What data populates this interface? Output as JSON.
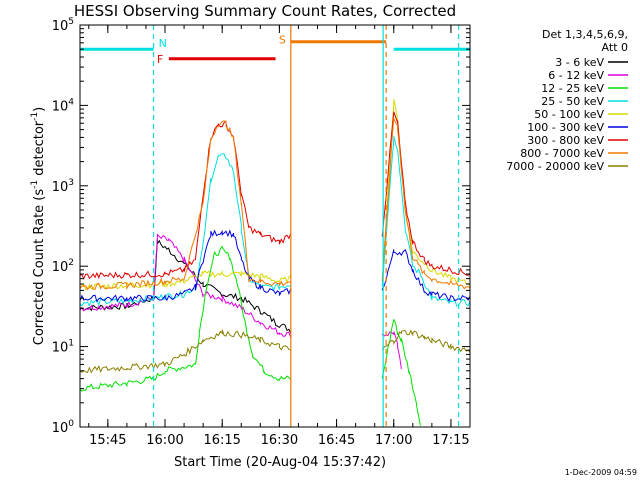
{
  "chart_data": {
    "type": "line",
    "title": "HESSI Observing Summary Count Rates, Corrected",
    "xlabel": "Start Time (20-Aug-04 15:37:42)",
    "ylabel": "Corrected Count Rate (s",
    "ylabel_exp": "-1",
    "ylabel_mid": " detector",
    "ylabel_end": ")",
    "xlim": [
      "15:37:42",
      "17:20:00"
    ],
    "ylim": [
      1,
      100000
    ],
    "yscale": "log",
    "x_ticks": [
      "15:45",
      "16:00",
      "16:15",
      "16:30",
      "16:45",
      "17:00",
      "17:15"
    ],
    "y_ticks": [
      {
        "base": "10",
        "exp": "0",
        "value": 1
      },
      {
        "base": "10",
        "exp": "1",
        "value": 10
      },
      {
        "base": "10",
        "exp": "2",
        "value": 100
      },
      {
        "base": "10",
        "exp": "3",
        "value": 1000
      },
      {
        "base": "10",
        "exp": "4",
        "value": 10000
      },
      {
        "base": "10",
        "exp": "5",
        "value": 100000
      }
    ],
    "legend_position": "right",
    "legend_header": [
      "Det 1,3,4,5,6,9,",
      "Att 0"
    ],
    "footer_date": "1-Dec-2009 04:59",
    "series": [
      {
        "name": "3 - 6 keV",
        "color": "#000000",
        "points": [
          [
            "15:37:42",
            30
          ],
          [
            "15:50",
            32
          ],
          [
            "15:57",
            40
          ],
          [
            "15:58",
            200
          ],
          [
            "16:01",
            160
          ],
          [
            "16:06",
            95
          ],
          [
            "16:10",
            60
          ],
          [
            "16:15",
            45
          ],
          [
            "16:20",
            40
          ],
          [
            "16:25",
            28
          ],
          [
            "16:29",
            20
          ],
          [
            "16:33",
            16
          ]
        ]
      },
      {
        "name": "6 - 12 keV",
        "color": "#e000e0",
        "points": [
          [
            "15:37:42",
            30
          ],
          [
            "15:50",
            33
          ],
          [
            "15:57",
            40
          ],
          [
            "15:58",
            230
          ],
          [
            "16:01",
            210
          ],
          [
            "16:05",
            120
          ],
          [
            "16:10",
            45
          ],
          [
            "16:15",
            40
          ],
          [
            "16:20",
            30
          ],
          [
            "16:25",
            20
          ],
          [
            "16:30",
            15
          ],
          [
            "16:33",
            14
          ],
          [
            "16:57",
            14
          ],
          [
            "17:00",
            15
          ],
          [
            "17:01",
            10
          ],
          [
            "17:02",
            5
          ]
        ]
      },
      {
        "name": "12 - 25 keV",
        "color": "#00e000",
        "points": [
          [
            "15:37:42",
            3
          ],
          [
            "15:50",
            3.5
          ],
          [
            "15:57",
            4
          ],
          [
            "16:00",
            5
          ],
          [
            "16:08",
            6
          ],
          [
            "16:09",
            15
          ],
          [
            "16:11",
            60
          ],
          [
            "16:13",
            140
          ],
          [
            "16:15",
            160
          ],
          [
            "16:17",
            130
          ],
          [
            "16:19",
            60
          ],
          [
            "16:21",
            20
          ],
          [
            "16:23",
            8
          ],
          [
            "16:26",
            5
          ],
          [
            "16:30",
            4
          ],
          [
            "16:33",
            4
          ],
          [
            "16:57",
            4
          ],
          [
            "17:00",
            22
          ],
          [
            "17:01",
            15
          ],
          [
            "17:02",
            12
          ],
          [
            "17:04",
            5
          ],
          [
            "17:06",
            2
          ],
          [
            "17:07",
            1
          ]
        ]
      },
      {
        "name": "25 - 50 keV",
        "color": "#00e0e0",
        "points": [
          [
            "15:37:42",
            35
          ],
          [
            "15:50",
            37
          ],
          [
            "15:57",
            40
          ],
          [
            "16:00",
            42
          ],
          [
            "16:05",
            45
          ],
          [
            "16:08",
            55
          ],
          [
            "16:10",
            180
          ],
          [
            "16:12",
            1200
          ],
          [
            "16:14",
            2300
          ],
          [
            "16:16",
            2300
          ],
          [
            "16:18",
            1500
          ],
          [
            "16:20",
            300
          ],
          [
            "16:22",
            70
          ],
          [
            "16:25",
            55
          ],
          [
            "16:30",
            55
          ],
          [
            "16:33",
            60
          ],
          [
            "16:57",
            60
          ],
          [
            "17:00",
            4000
          ],
          [
            "17:01",
            3000
          ],
          [
            "17:03",
            300
          ],
          [
            "17:05",
            100
          ],
          [
            "17:07",
            80
          ],
          [
            "17:10",
            40
          ],
          [
            "17:15",
            35
          ],
          [
            "17:20",
            35
          ]
        ]
      },
      {
        "name": "50 - 100 keV",
        "color": "#d8d800",
        "points": [
          [
            "15:37:42",
            55
          ],
          [
            "15:50",
            58
          ],
          [
            "16:00",
            60
          ],
          [
            "16:05",
            65
          ],
          [
            "16:10",
            80
          ],
          [
            "16:15",
            80
          ],
          [
            "16:20",
            80
          ],
          [
            "16:25",
            75
          ],
          [
            "16:30",
            65
          ],
          [
            "16:33",
            70
          ],
          [
            "16:57",
            70
          ],
          [
            "17:00",
            11000
          ],
          [
            "17:01",
            7000
          ],
          [
            "17:03",
            500
          ],
          [
            "17:05",
            150
          ],
          [
            "17:10",
            90
          ],
          [
            "17:15",
            70
          ],
          [
            "17:20",
            60
          ]
        ]
      },
      {
        "name": "100 - 300 keV",
        "color": "#0000e0",
        "points": [
          [
            "15:37:42",
            40
          ],
          [
            "15:50",
            40
          ],
          [
            "16:00",
            40
          ],
          [
            "16:05",
            45
          ],
          [
            "16:08",
            55
          ],
          [
            "16:10",
            120
          ],
          [
            "16:12",
            250
          ],
          [
            "16:15",
            270
          ],
          [
            "16:18",
            250
          ],
          [
            "16:20",
            120
          ],
          [
            "16:22",
            70
          ],
          [
            "16:25",
            55
          ],
          [
            "16:30",
            45
          ],
          [
            "16:33",
            50
          ],
          [
            "16:57",
            50
          ],
          [
            "17:00",
            150
          ],
          [
            "17:03",
            150
          ],
          [
            "17:05",
            90
          ],
          [
            "17:08",
            50
          ],
          [
            "17:10",
            45
          ],
          [
            "17:15",
            40
          ],
          [
            "17:20",
            40
          ]
        ]
      },
      {
        "name": "300 - 800 keV",
        "color": "#e00000",
        "points": [
          [
            "15:37:42",
            75
          ],
          [
            "15:50",
            78
          ],
          [
            "16:00",
            80
          ],
          [
            "16:05",
            90
          ],
          [
            "16:08",
            120
          ],
          [
            "16:10",
            800
          ],
          [
            "16:12",
            4000
          ],
          [
            "16:14",
            5800
          ],
          [
            "16:16",
            5800
          ],
          [
            "16:18",
            4000
          ],
          [
            "16:20",
            800
          ],
          [
            "16:22",
            300
          ],
          [
            "16:25",
            250
          ],
          [
            "16:30",
            200
          ],
          [
            "16:33",
            250
          ],
          [
            "16:57",
            250
          ],
          [
            "17:00",
            8000
          ],
          [
            "17:01",
            6000
          ],
          [
            "17:03",
            600
          ],
          [
            "17:05",
            200
          ],
          [
            "17:08",
            120
          ],
          [
            "17:10",
            100
          ],
          [
            "17:15",
            90
          ],
          [
            "17:20",
            80
          ]
        ]
      },
      {
        "name": "800 - 7000 keV",
        "color": "#f07800",
        "points": [
          [
            "15:37:42",
            55
          ],
          [
            "15:50",
            58
          ],
          [
            "16:00",
            65
          ],
          [
            "16:05",
            70
          ],
          [
            "16:10",
            600
          ],
          [
            "16:12",
            3800
          ],
          [
            "16:14",
            6000
          ],
          [
            "16:16",
            6000
          ],
          [
            "16:18",
            3800
          ],
          [
            "16:20",
            600
          ],
          [
            "16:22",
            70
          ],
          [
            "16:25",
            65
          ],
          [
            "16:30",
            60
          ],
          [
            "16:33",
            65
          ],
          [
            "16:57",
            65
          ],
          [
            "17:00",
            7000
          ],
          [
            "17:01",
            5500
          ],
          [
            "17:03",
            500
          ],
          [
            "17:05",
            130
          ],
          [
            "17:08",
            80
          ],
          [
            "17:10",
            70
          ],
          [
            "17:15",
            60
          ],
          [
            "17:20",
            55
          ]
        ]
      },
      {
        "name": "7000 - 20000 keV",
        "color": "#888000",
        "points": [
          [
            "15:37:42",
            5
          ],
          [
            "15:50",
            5.5
          ],
          [
            "16:00",
            6
          ],
          [
            "16:05",
            8
          ],
          [
            "16:10",
            12
          ],
          [
            "16:15",
            15
          ],
          [
            "16:20",
            14
          ],
          [
            "16:25",
            12
          ],
          [
            "16:30",
            10
          ],
          [
            "16:33",
            9
          ],
          [
            "16:57",
            9
          ],
          [
            "17:00",
            12
          ],
          [
            "17:02",
            15
          ],
          [
            "17:05",
            15
          ],
          [
            "17:08",
            13
          ],
          [
            "17:10",
            12
          ],
          [
            "17:15",
            10
          ],
          [
            "17:20",
            9
          ]
        ]
      }
    ],
    "annotations": {
      "N": {
        "label": "N",
        "color": "#00e0e0",
        "segments": [
          [
            "15:37:42",
            "15:57"
          ],
          [
            "17:00",
            "17:20"
          ]
        ],
        "level": 50000
      },
      "F": {
        "label": "F",
        "color": "#e00000",
        "segment": [
          "16:01",
          "16:29"
        ],
        "level": 38000
      },
      "S": {
        "label": "S",
        "color": "#f07800",
        "segment": [
          "16:33",
          "16:58"
        ],
        "level": 62000
      },
      "vlines": [
        {
          "time": "15:57",
          "color": "#00e0e0",
          "dashed": true
        },
        {
          "time": "16:33",
          "color": "#f07800",
          "dashed": false
        },
        {
          "time": "16:58",
          "color": "#f07800",
          "dashed": true
        },
        {
          "time": "16:58",
          "color": "#00e0e0",
          "dashed": false
        },
        {
          "time": "17:17",
          "color": "#00e0e0",
          "dashed": true
        }
      ]
    }
  }
}
